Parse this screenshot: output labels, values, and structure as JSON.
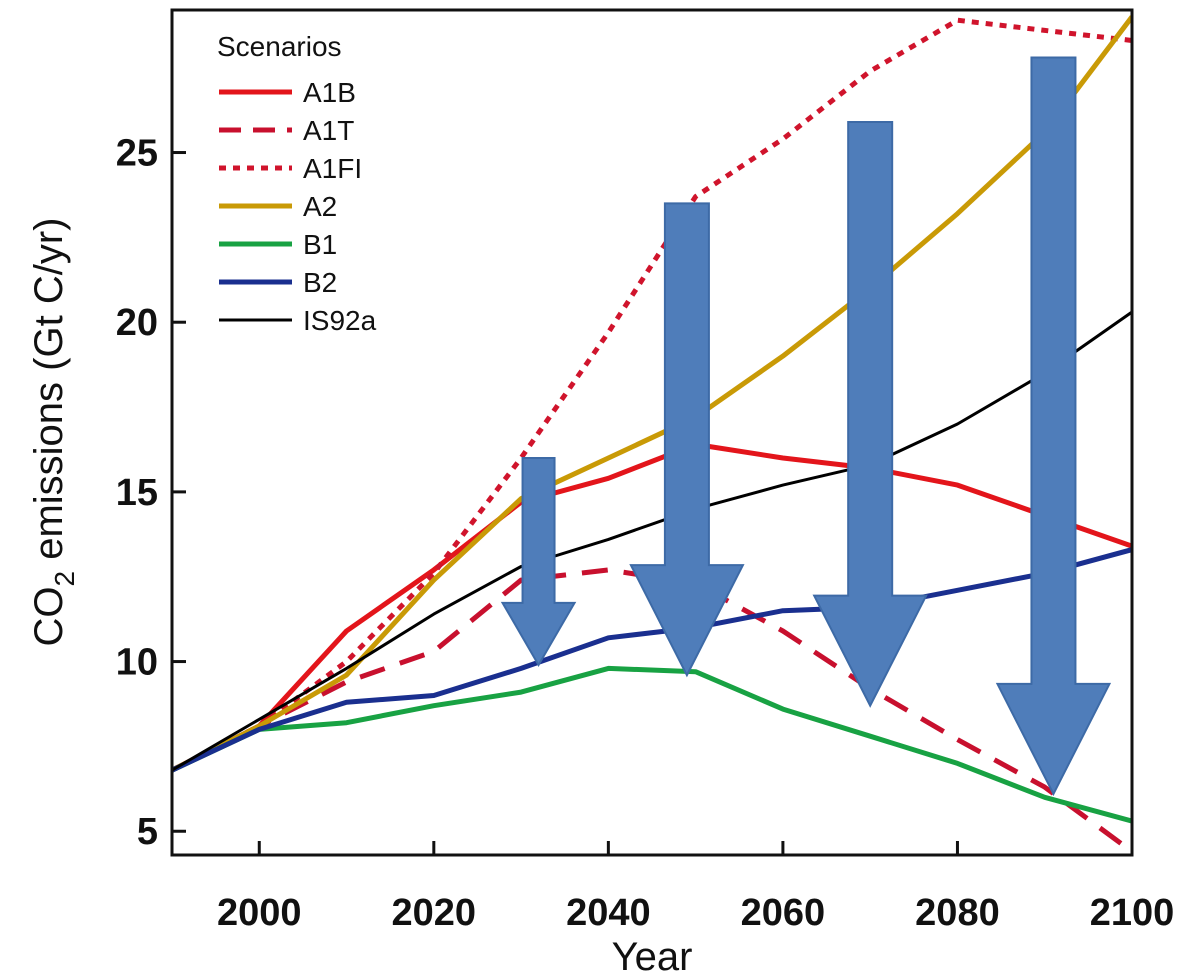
{
  "chart_data": {
    "type": "line",
    "xlabel": "Year",
    "ylabel_prefix": "CO",
    "ylabel_sub": "2",
    "ylabel_suffix": " emissions (Gt C/yr)",
    "xlim": [
      1990,
      2100
    ],
    "ylim": [
      4.3,
      29.2
    ],
    "xticks": [
      2000,
      2020,
      2040,
      2060,
      2080,
      2100
    ],
    "yticks": [
      5,
      10,
      15,
      20,
      25
    ],
    "grid": false,
    "legend": {
      "title": "Scenarios",
      "position": "top-left"
    },
    "series": [
      {
        "name": "A1B",
        "color": "#e3151b",
        "dash": "solid",
        "x": [
          1990,
          2000,
          2010,
          2020,
          2030,
          2040,
          2050,
          2060,
          2070,
          2080,
          2090,
          2100
        ],
        "y": [
          6.8,
          8.1,
          10.9,
          12.7,
          14.7,
          15.4,
          16.4,
          16.0,
          15.7,
          15.2,
          14.3,
          13.4
        ]
      },
      {
        "name": "A1T",
        "color": "#c8102e",
        "dash": "dashed",
        "x": [
          1990,
          2000,
          2010,
          2020,
          2030,
          2040,
          2050,
          2060,
          2070,
          2080,
          2090,
          2100
        ],
        "y": [
          6.8,
          8.1,
          9.4,
          10.3,
          12.4,
          12.7,
          12.3,
          10.9,
          9.2,
          7.7,
          6.3,
          4.4
        ]
      },
      {
        "name": "A1FI",
        "color": "#d0142c",
        "dash": "dotted",
        "x": [
          1990,
          2000,
          2010,
          2020,
          2030,
          2040,
          2050,
          2060,
          2070,
          2080,
          2090,
          2100
        ],
        "y": [
          6.8,
          8.1,
          10.0,
          12.6,
          16.0,
          19.7,
          23.7,
          25.4,
          27.4,
          28.9,
          28.6,
          28.3
        ]
      },
      {
        "name": "A2",
        "color": "#c99a06",
        "dash": "solid",
        "x": [
          1990,
          2000,
          2010,
          2020,
          2030,
          2040,
          2050,
          2060,
          2070,
          2080,
          2090,
          2100
        ],
        "y": [
          6.8,
          8.1,
          9.6,
          12.4,
          14.8,
          16.0,
          17.2,
          19.0,
          21.0,
          23.2,
          25.6,
          29.0
        ]
      },
      {
        "name": "B1",
        "color": "#18a243",
        "dash": "solid",
        "x": [
          1990,
          2000,
          2010,
          2020,
          2030,
          2040,
          2050,
          2060,
          2070,
          2080,
          2090,
          2100
        ],
        "y": [
          6.8,
          8.0,
          8.2,
          8.7,
          9.1,
          9.8,
          9.7,
          8.6,
          7.8,
          7.0,
          6.0,
          5.3
        ]
      },
      {
        "name": "B2",
        "color": "#1a2f8f",
        "dash": "solid",
        "x": [
          1990,
          2000,
          2010,
          2020,
          2030,
          2040,
          2050,
          2060,
          2070,
          2080,
          2090,
          2100
        ],
        "y": [
          6.8,
          8.0,
          8.8,
          9.0,
          9.8,
          10.7,
          11.0,
          11.5,
          11.6,
          12.1,
          12.6,
          13.3
        ]
      },
      {
        "name": "IS92a",
        "color": "#000000",
        "dash": "solid",
        "x": [
          1990,
          2000,
          2010,
          2020,
          2030,
          2040,
          2050,
          2060,
          2070,
          2080,
          2090,
          2100
        ],
        "y": [
          6.8,
          8.3,
          9.8,
          11.4,
          12.8,
          13.6,
          14.5,
          15.2,
          15.8,
          17.0,
          18.5,
          20.3
        ]
      }
    ],
    "annotations": {
      "arrow_color": "#4f7dba",
      "arrows": [
        {
          "x": 2032,
          "y_top": 16.0,
          "y_tip": 9.9
        },
        {
          "x": 2049,
          "y_top": 23.5,
          "y_tip": 9.6
        },
        {
          "x": 2070,
          "y_top": 25.9,
          "y_tip": 8.7
        },
        {
          "x": 2091,
          "y_top": 27.8,
          "y_tip": 6.1
        }
      ]
    }
  }
}
